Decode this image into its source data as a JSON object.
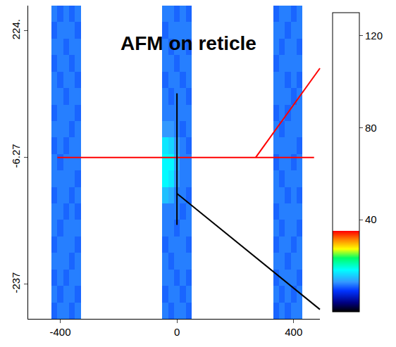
{
  "chart_data": {
    "type": "heatmap",
    "title": "AFM on reticle",
    "x": [
      -500,
      -480,
      -460,
      -440,
      -420,
      -400,
      -380,
      -360,
      -340,
      -320,
      -300,
      -280,
      -260,
      -240,
      -220,
      -200,
      -180,
      -160,
      -140,
      -120,
      -100,
      -80,
      -60,
      -40,
      -20,
      0,
      20,
      40,
      60,
      80,
      100,
      120,
      140,
      160,
      180,
      200,
      220,
      240,
      260,
      280,
      300,
      320,
      340,
      360,
      380,
      400,
      420,
      440,
      460,
      480
    ],
    "y": [
      -285,
      -255,
      -225,
      -195,
      -165,
      -135,
      -105,
      -75,
      -45,
      -15,
      15,
      45,
      75,
      105,
      135,
      165,
      195,
      225,
      255
    ],
    "z": [
      [
        null,
        null,
        null,
        null,
        11,
        12,
        12,
        11,
        12,
        null,
        null,
        null,
        null,
        null,
        null,
        null,
        null,
        null,
        null,
        null,
        null,
        null,
        null,
        12,
        11,
        12,
        12,
        11,
        null,
        null,
        null,
        null,
        null,
        null,
        null,
        null,
        null,
        null,
        null,
        null,
        null,
        null,
        11,
        12,
        11,
        12,
        12,
        null,
        null,
        null
      ],
      [
        null,
        null,
        null,
        null,
        12,
        11,
        12,
        12,
        11,
        null,
        null,
        null,
        null,
        null,
        null,
        null,
        null,
        null,
        null,
        null,
        null,
        null,
        null,
        11,
        12,
        12,
        11,
        12,
        null,
        null,
        null,
        null,
        null,
        null,
        null,
        null,
        null,
        null,
        null,
        null,
        null,
        null,
        12,
        11,
        12,
        11,
        12,
        null,
        null,
        null
      ],
      [
        null,
        null,
        null,
        null,
        11,
        12,
        11,
        12,
        12,
        null,
        null,
        null,
        null,
        null,
        null,
        null,
        null,
        null,
        null,
        null,
        null,
        null,
        null,
        12,
        12,
        11,
        12,
        11,
        null,
        null,
        null,
        null,
        null,
        null,
        null,
        null,
        null,
        null,
        null,
        null,
        null,
        null,
        11,
        12,
        12,
        12,
        11,
        null,
        null,
        null
      ],
      [
        null,
        null,
        null,
        null,
        12,
        12,
        12,
        11,
        12,
        null,
        null,
        null,
        null,
        null,
        null,
        null,
        null,
        null,
        null,
        null,
        null,
        null,
        null,
        12,
        11,
        12,
        12,
        12,
        null,
        null,
        null,
        null,
        null,
        null,
        null,
        null,
        null,
        null,
        null,
        null,
        null,
        null,
        12,
        12,
        11,
        12,
        12,
        null,
        null,
        null
      ],
      [
        null,
        null,
        null,
        null,
        11,
        12,
        12,
        12,
        11,
        null,
        null,
        null,
        null,
        null,
        null,
        null,
        null,
        null,
        null,
        null,
        null,
        null,
        null,
        11,
        12,
        12,
        12,
        11,
        null,
        null,
        null,
        null,
        null,
        null,
        null,
        null,
        null,
        null,
        null,
        null,
        null,
        null,
        11,
        12,
        12,
        11,
        12,
        null,
        null,
        null
      ],
      [
        null,
        null,
        null,
        null,
        12,
        11,
        12,
        12,
        12,
        null,
        null,
        null,
        null,
        null,
        null,
        null,
        null,
        null,
        null,
        null,
        null,
        null,
        null,
        12,
        12,
        11,
        12,
        12,
        null,
        null,
        null,
        null,
        null,
        null,
        null,
        null,
        null,
        null,
        null,
        null,
        null,
        null,
        12,
        11,
        12,
        12,
        11,
        null,
        null,
        null
      ],
      [
        null,
        null,
        null,
        null,
        12,
        12,
        11,
        12,
        11,
        null,
        null,
        null,
        null,
        null,
        null,
        null,
        null,
        null,
        null,
        null,
        null,
        null,
        null,
        12,
        12,
        12,
        11,
        12,
        null,
        null,
        null,
        null,
        null,
        null,
        null,
        null,
        null,
        null,
        null,
        null,
        null,
        null,
        11,
        12,
        12,
        12,
        12,
        null,
        null,
        null
      ],
      [
        null,
        null,
        null,
        null,
        11,
        12,
        12,
        11,
        12,
        null,
        null,
        null,
        null,
        null,
        null,
        null,
        null,
        null,
        null,
        null,
        null,
        null,
        null,
        15,
        14,
        12,
        12,
        11,
        null,
        null,
        null,
        null,
        null,
        null,
        null,
        null,
        null,
        null,
        null,
        null,
        null,
        null,
        12,
        12,
        11,
        12,
        11,
        null,
        null,
        null
      ],
      [
        null,
        null,
        null,
        null,
        12,
        12,
        12,
        12,
        11,
        null,
        null,
        null,
        null,
        null,
        null,
        null,
        null,
        null,
        null,
        null,
        null,
        null,
        null,
        18,
        17,
        13,
        12,
        12,
        null,
        null,
        null,
        null,
        null,
        null,
        null,
        null,
        null,
        null,
        null,
        null,
        null,
        null,
        12,
        11,
        12,
        12,
        12,
        null,
        null,
        null
      ],
      [
        null,
        null,
        null,
        null,
        12,
        11,
        12,
        12,
        12,
        null,
        null,
        null,
        null,
        null,
        null,
        null,
        null,
        null,
        null,
        null,
        null,
        null,
        null,
        18,
        18,
        14,
        12,
        12,
        null,
        null,
        null,
        null,
        null,
        null,
        null,
        null,
        null,
        null,
        null,
        null,
        null,
        null,
        11,
        12,
        12,
        11,
        12,
        null,
        null,
        null
      ],
      [
        null,
        null,
        null,
        null,
        11,
        12,
        11,
        12,
        12,
        null,
        null,
        null,
        null,
        null,
        null,
        null,
        null,
        null,
        null,
        null,
        null,
        null,
        null,
        17,
        16,
        13,
        12,
        11,
        null,
        null,
        null,
        null,
        null,
        null,
        null,
        null,
        null,
        null,
        null,
        null,
        null,
        null,
        12,
        12,
        12,
        12,
        11,
        null,
        null,
        null
      ],
      [
        null,
        null,
        null,
        null,
        12,
        12,
        12,
        11,
        12,
        null,
        null,
        null,
        null,
        null,
        null,
        null,
        null,
        null,
        null,
        null,
        null,
        null,
        null,
        13,
        13,
        12,
        11,
        12,
        null,
        null,
        null,
        null,
        null,
        null,
        null,
        null,
        null,
        null,
        null,
        null,
        null,
        null,
        12,
        11,
        12,
        12,
        12,
        null,
        null,
        null
      ],
      [
        null,
        null,
        null,
        null,
        11,
        12,
        12,
        12,
        11,
        null,
        null,
        null,
        null,
        null,
        null,
        null,
        null,
        null,
        null,
        null,
        null,
        null,
        null,
        12,
        12,
        12,
        12,
        12,
        null,
        null,
        null,
        null,
        null,
        null,
        null,
        null,
        null,
        null,
        null,
        null,
        null,
        null,
        11,
        12,
        11,
        12,
        12,
        null,
        null,
        null
      ],
      [
        null,
        null,
        null,
        null,
        12,
        12,
        11,
        12,
        12,
        null,
        null,
        null,
        null,
        null,
        null,
        null,
        null,
        null,
        null,
        null,
        null,
        null,
        null,
        12,
        11,
        12,
        12,
        11,
        null,
        null,
        null,
        null,
        null,
        null,
        null,
        null,
        null,
        null,
        null,
        null,
        null,
        null,
        12,
        12,
        12,
        11,
        12,
        null,
        null,
        null
      ],
      [
        null,
        null,
        null,
        null,
        12,
        11,
        12,
        12,
        11,
        null,
        null,
        null,
        null,
        null,
        null,
        null,
        null,
        null,
        null,
        null,
        null,
        null,
        null,
        11,
        12,
        12,
        11,
        12,
        null,
        null,
        null,
        null,
        null,
        null,
        null,
        null,
        null,
        null,
        null,
        null,
        null,
        null,
        12,
        12,
        11,
        12,
        11,
        null,
        null,
        null
      ],
      [
        null,
        null,
        null,
        null,
        11,
        12,
        12,
        11,
        12,
        null,
        null,
        null,
        null,
        null,
        null,
        null,
        null,
        null,
        null,
        null,
        null,
        null,
        null,
        12,
        12,
        11,
        12,
        12,
        null,
        null,
        null,
        null,
        null,
        null,
        null,
        null,
        null,
        null,
        null,
        null,
        null,
        null,
        11,
        12,
        12,
        12,
        12,
        null,
        null,
        null
      ],
      [
        null,
        null,
        null,
        null,
        12,
        12,
        11,
        12,
        12,
        null,
        null,
        null,
        null,
        null,
        null,
        null,
        null,
        null,
        null,
        null,
        null,
        null,
        null,
        12,
        11,
        12,
        12,
        11,
        null,
        null,
        null,
        null,
        null,
        null,
        null,
        null,
        null,
        null,
        null,
        null,
        null,
        null,
        12,
        11,
        12,
        12,
        11,
        null,
        null,
        null
      ],
      [
        null,
        null,
        null,
        null,
        11,
        12,
        12,
        12,
        11,
        null,
        null,
        null,
        null,
        null,
        null,
        null,
        null,
        null,
        null,
        null,
        null,
        null,
        null,
        11,
        12,
        12,
        12,
        12,
        null,
        null,
        null,
        null,
        null,
        null,
        null,
        null,
        null,
        null,
        null,
        null,
        null,
        null,
        12,
        12,
        11,
        12,
        12,
        null,
        null,
        null
      ],
      [
        null,
        null,
        null,
        null,
        12,
        11,
        12,
        11,
        12,
        null,
        null,
        null,
        null,
        null,
        null,
        null,
        null,
        null,
        null,
        null,
        null,
        null,
        null,
        12,
        12,
        11,
        12,
        11,
        null,
        null,
        null,
        null,
        null,
        null,
        null,
        null,
        null,
        null,
        null,
        null,
        null,
        null,
        11,
        12,
        12,
        11,
        12,
        null,
        null,
        null
      ]
    ],
    "xlim": [
      -510,
      490
    ],
    "ylim": [
      -300,
      270
    ],
    "xticks": [
      -400,
      0,
      400
    ],
    "yticks": [
      {
        "value": 224,
        "label": "224."
      },
      -6.27,
      -237
    ],
    "zlim": [
      0,
      130
    ],
    "zticks": [
      40,
      80,
      120
    ],
    "profiles": [
      {
        "orientation": "horizontal",
        "value": -6.27,
        "color": "red"
      },
      {
        "orientation": "vertical",
        "value": 0,
        "color": "black"
      }
    ],
    "grid": false
  }
}
